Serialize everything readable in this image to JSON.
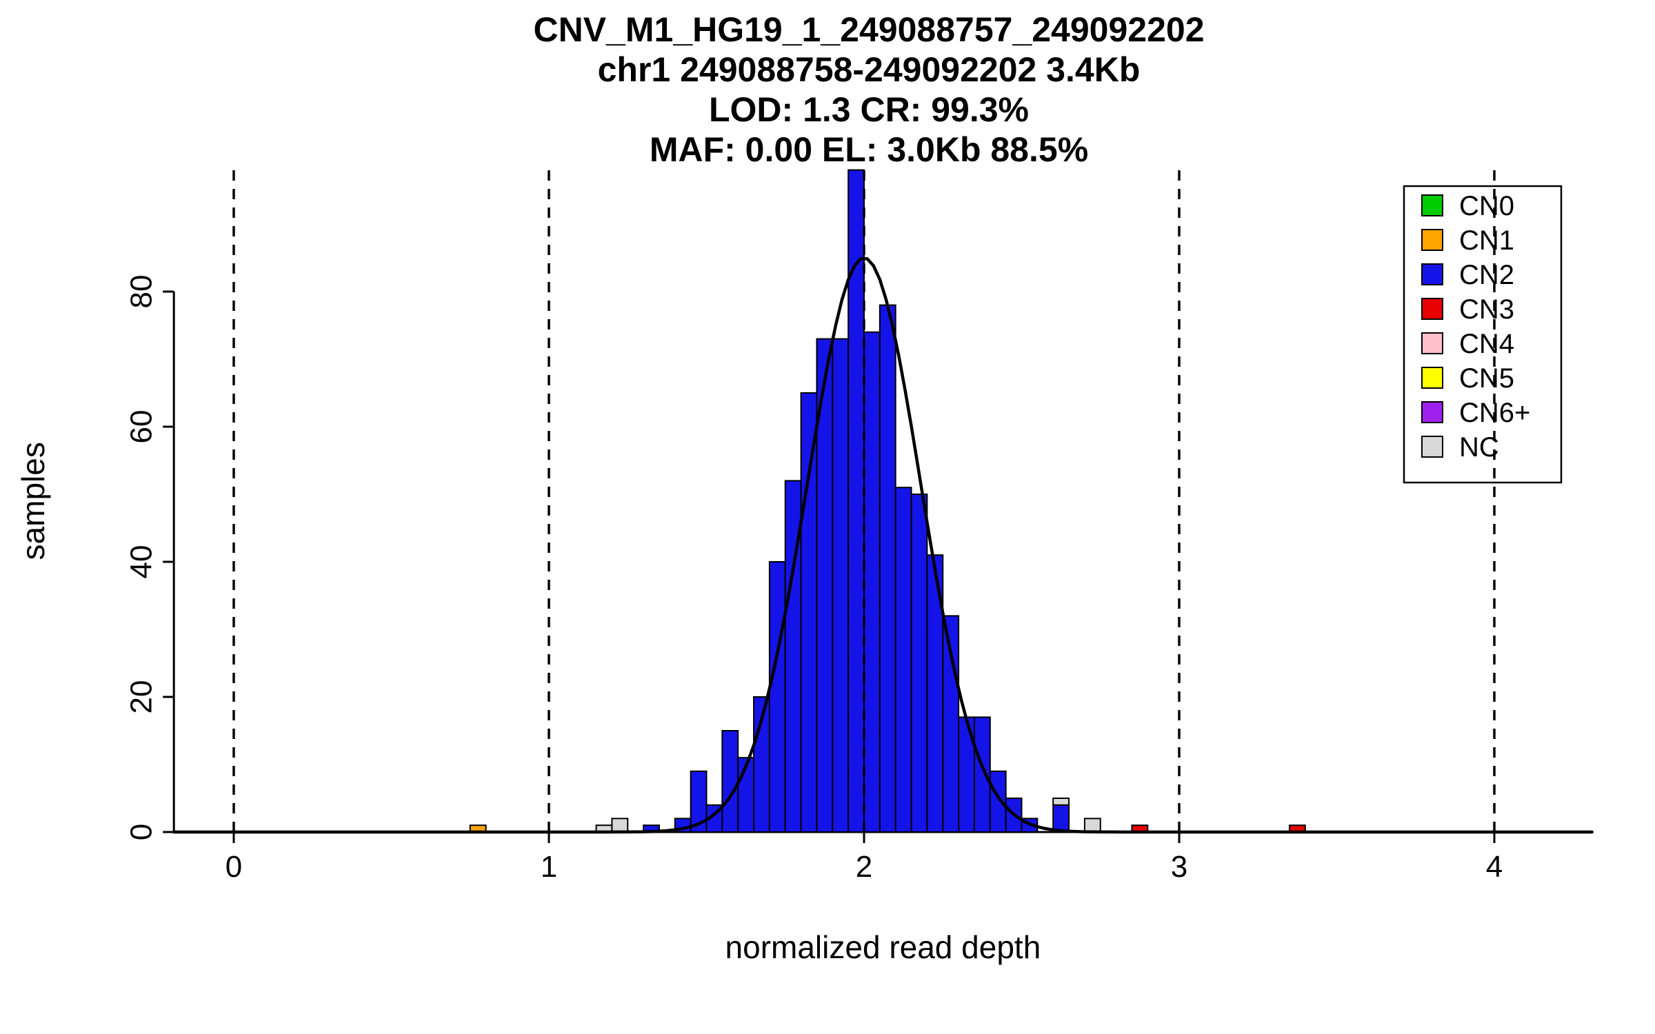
{
  "title": {
    "line1": "CNV_M1_HG19_1_249088757_249092202",
    "line2": "chr1 249088758-249092202 3.4Kb",
    "line3": "LOD: 1.3 CR: 99.3%",
    "line4": "MAF: 0.00 EL: 3.0Kb 88.5%"
  },
  "chart_data": {
    "type": "bar",
    "title": "CNV_M1_HG19_1_249088757_249092202",
    "subtitle_lines": [
      "chr1 249088758-249092202 3.4Kb",
      "LOD: 1.3 CR: 99.3%",
      "MAF: 0.00 EL: 3.0Kb 88.5%"
    ],
    "xlabel": "normalized read depth",
    "ylabel": "samples",
    "xlim": [
      -0.19,
      4.31
    ],
    "ylim": [
      0,
      98
    ],
    "x_ticks": [
      0,
      1,
      2,
      3,
      4
    ],
    "y_ticks": [
      0,
      20,
      40,
      60,
      80
    ],
    "dashed_vlines": [
      0,
      1,
      2,
      3,
      4
    ],
    "grid": false,
    "bin_width": 0.05,
    "colors": {
      "CN0": "#00CC00",
      "CN1": "#FFA500",
      "CN2": "#1414E8",
      "CN3": "#E60000",
      "CN4": "#FFC0CB",
      "CN5": "#FFFF00",
      "CN6+": "#A020F0",
      "NC": "#D9D9D9"
    },
    "legend": {
      "position": "top-right",
      "items": [
        {
          "label": "CN0",
          "color": "#00CC00"
        },
        {
          "label": "CN1",
          "color": "#FFA500"
        },
        {
          "label": "CN2",
          "color": "#1414E8"
        },
        {
          "label": "CN3",
          "color": "#E60000"
        },
        {
          "label": "CN4",
          "color": "#FFC0CB"
        },
        {
          "label": "CN5",
          "color": "#FFFF00"
        },
        {
          "label": "CN6+",
          "color": "#A020F0"
        },
        {
          "label": "NC",
          "color": "#D9D9D9"
        }
      ]
    },
    "bars": [
      {
        "x": 0.75,
        "h": 1,
        "cn": "CN1"
      },
      {
        "x": 1.15,
        "h": 1,
        "cn": "NC"
      },
      {
        "x": 1.2,
        "h": 2,
        "cn": "NC"
      },
      {
        "x": 1.3,
        "h": 1,
        "cn": "CN2"
      },
      {
        "x": 1.4,
        "h": 2,
        "cn": "CN2"
      },
      {
        "x": 1.45,
        "h": 9,
        "cn": "CN2"
      },
      {
        "x": 1.5,
        "h": 4,
        "cn": "CN2"
      },
      {
        "x": 1.55,
        "h": 15,
        "cn": "CN2"
      },
      {
        "x": 1.6,
        "h": 11,
        "cn": "CN2"
      },
      {
        "x": 1.65,
        "h": 20,
        "cn": "CN2"
      },
      {
        "x": 1.7,
        "h": 40,
        "cn": "CN2"
      },
      {
        "x": 1.75,
        "h": 52,
        "cn": "CN2"
      },
      {
        "x": 1.8,
        "h": 65,
        "cn": "CN2"
      },
      {
        "x": 1.85,
        "h": 73,
        "cn": "CN2"
      },
      {
        "x": 1.9,
        "h": 73,
        "cn": "CN2"
      },
      {
        "x": 1.95,
        "h": 98,
        "cn": "CN2"
      },
      {
        "x": 2.0,
        "h": 74,
        "cn": "CN2"
      },
      {
        "x": 2.05,
        "h": 78,
        "cn": "CN2"
      },
      {
        "x": 2.1,
        "h": 51,
        "cn": "CN2"
      },
      {
        "x": 2.15,
        "h": 50,
        "cn": "CN2"
      },
      {
        "x": 2.2,
        "h": 41,
        "cn": "CN2"
      },
      {
        "x": 2.25,
        "h": 32,
        "cn": "CN2"
      },
      {
        "x": 2.3,
        "h": 17,
        "cn": "CN2"
      },
      {
        "x": 2.35,
        "h": 17,
        "cn": "CN2"
      },
      {
        "x": 2.4,
        "h": 9,
        "cn": "CN2"
      },
      {
        "x": 2.45,
        "h": 5,
        "cn": "CN2"
      },
      {
        "x": 2.5,
        "h": 2,
        "cn": "CN2"
      },
      {
        "x": 2.6,
        "h": 4,
        "cn": "CN2"
      },
      {
        "x": 2.6,
        "base": 4,
        "h": 1,
        "cn": "NC"
      },
      {
        "x": 2.7,
        "h": 2,
        "cn": "NC"
      },
      {
        "x": 2.85,
        "h": 1,
        "cn": "CN3"
      },
      {
        "x": 3.35,
        "h": 1,
        "cn": "CN3"
      }
    ],
    "curve": {
      "shape": "gaussian",
      "mean": 2.0,
      "sd": 0.18,
      "peak": 85
    }
  }
}
